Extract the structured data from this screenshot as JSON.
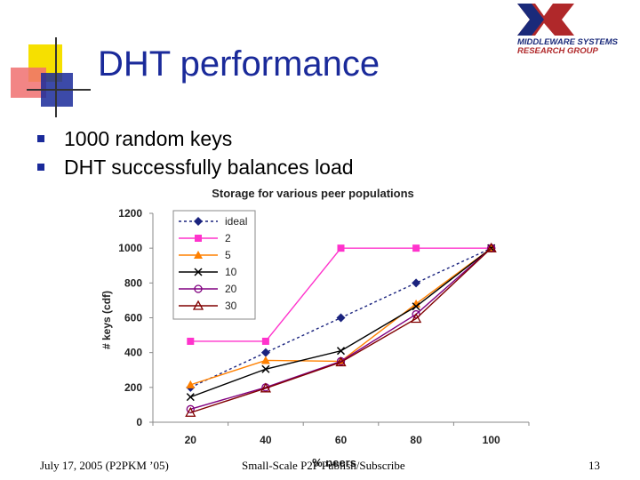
{
  "slide": {
    "title": "DHT performance",
    "bullets": [
      "1000 random keys",
      "DHT successfully balances load"
    ],
    "logo": {
      "line1": "MIDDLEWARE SYSTEMS",
      "line2": "RESEARCH GROUP"
    },
    "footer": {
      "left": "July 17, 2005 (P2PKM ’05)",
      "center": "Small-Scale P2P Publish/Subscribe",
      "right": "13"
    },
    "colors": {
      "title": "#1a2a9a",
      "deco_yellow": "#f6e000",
      "deco_red": "#e8302a",
      "deco_blue": "#1a2a9a",
      "logo_red": "#b0282a",
      "logo_blue": "#1a2a7a"
    }
  },
  "chart_data": {
    "type": "line",
    "title": "Storage for various peer populations",
    "xlabel": "% peers",
    "ylabel": "# keys (cdf)",
    "categories": [
      "20",
      "40",
      "60",
      "80",
      "100"
    ],
    "ylim": [
      0,
      1200
    ],
    "yticks": [
      0,
      200,
      400,
      600,
      800,
      1000,
      1200
    ],
    "grid": false,
    "legend_position": "top-left",
    "series": [
      {
        "name": "ideal",
        "values": [
          200,
          400,
          600,
          800,
          1000
        ],
        "color": "#1a237e",
        "marker": "diamond",
        "dash": "3,3"
      },
      {
        "name": "2",
        "values": [
          465,
          465,
          1000,
          1000,
          1000
        ],
        "color": "#ff33cc",
        "marker": "square",
        "dash": ""
      },
      {
        "name": "5",
        "values": [
          215,
          355,
          350,
          680,
          1000
        ],
        "color": "#ff8000",
        "marker": "triangle-filled",
        "dash": ""
      },
      {
        "name": "10",
        "values": [
          145,
          305,
          410,
          665,
          1000
        ],
        "color": "#000000",
        "marker": "x",
        "dash": ""
      },
      {
        "name": "20",
        "values": [
          75,
          200,
          350,
          620,
          1000
        ],
        "color": "#800080",
        "marker": "circle-open",
        "dash": ""
      },
      {
        "name": "30",
        "values": [
          55,
          195,
          345,
          595,
          1000
        ],
        "color": "#800000",
        "marker": "triangle-open",
        "dash": ""
      }
    ]
  }
}
